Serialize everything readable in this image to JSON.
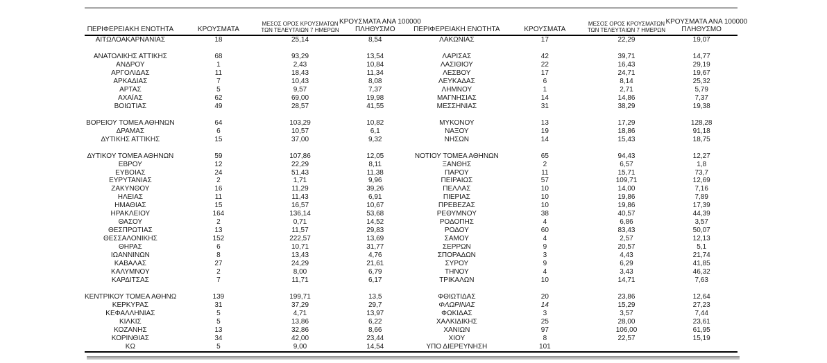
{
  "table": {
    "columns": {
      "region": "ΠΕΡΙΦΕΡΕΙΑΚΗ ΕΝΟΤΗΤΑ",
      "cases": "ΚΡΟΥΣΜΑΤΑ",
      "avg7_line1": "ΜΕΣΟΣ ΟΡΟΣ ΚΡΟΥΣΜΑΤΩΝ",
      "avg7_line2": "ΤΩΝ ΤΕΛΕΥΤΑΙΩΝ 7 ΗΜΕΡΩΝ",
      "per100k_line1": "ΚΡΟΥΣΜΑΤΑ ΑΝΑ 100000",
      "per100k_line2": "ΠΛΗΘΥΣΜΟ"
    },
    "rows": [
      {
        "l": [
          "ΑΙΤΩΛΟΑΚΑΡΝΑΝΙΑΣ",
          "18",
          "25,14",
          "8,54"
        ],
        "r": [
          "ΛΑΚΩΝΙΑΣ",
          "17",
          "22,29",
          "19,07"
        ]
      },
      {
        "spacer": true,
        "l": [
          "",
          "",
          "",
          ""
        ],
        "r": [
          "",
          "",
          "",
          ""
        ]
      },
      {
        "l": [
          "ΑΝΑΤΟΛΙΚΗΣ ΑΤΤΙΚΗΣ",
          "68",
          "93,29",
          "13,54"
        ],
        "r": [
          "ΛΑΡΙΣΑΣ",
          "42",
          "39,71",
          "14,77"
        ]
      },
      {
        "l": [
          "ΑΝΔΡΟΥ",
          "1",
          "2,43",
          "10,84"
        ],
        "r": [
          "ΛΑΣΙΘΙΟΥ",
          "22",
          "16,43",
          "29,19"
        ]
      },
      {
        "l": [
          "ΑΡΓΟΛΙΔΑΣ",
          "11",
          "18,43",
          "11,34"
        ],
        "r": [
          "ΛΕΣΒΟΥ",
          "17",
          "24,71",
          "19,67"
        ]
      },
      {
        "l": [
          "ΑΡΚΑΔΙΑΣ",
          "7",
          "10,43",
          "8,08"
        ],
        "r": [
          "ΛΕΥΚΑΔΑΣ",
          "6",
          "8,14",
          "25,32"
        ]
      },
      {
        "l": [
          "ΑΡΤΑΣ",
          "5",
          "9,57",
          "7,37"
        ],
        "r": [
          "ΛΗΜΝΟΥ",
          "1",
          "2,71",
          "5,79"
        ]
      },
      {
        "l": [
          "ΑΧΑΪΑΣ",
          "62",
          "69,00",
          "19,98"
        ],
        "r": [
          "ΜΑΓΝΗΣΙΑΣ",
          "14",
          "14,86",
          "7,37"
        ]
      },
      {
        "l": [
          "ΒΟΙΩΤΙΑΣ",
          "49",
          "28,57",
          "41,55"
        ],
        "r": [
          "ΜΕΣΣΗΝΙΑΣ",
          "31",
          "38,29",
          "19,38"
        ]
      },
      {
        "spacer": true,
        "l": [
          "",
          "",
          "",
          ""
        ],
        "r": [
          "",
          "",
          "",
          ""
        ]
      },
      {
        "l": [
          "ΒΟΡΕΙΟΥ ΤΟΜΕΑ ΑΘΗΝΩΝ",
          "64",
          "103,29",
          "10,82"
        ],
        "r": [
          "ΜΥΚΟΝΟΥ",
          "13",
          "17,29",
          "128,28"
        ]
      },
      {
        "l": [
          "ΔΡΑΜΑΣ",
          "6",
          "10,57",
          "6,1"
        ],
        "r": [
          "ΝΑΞΟΥ",
          "19",
          "18,86",
          "91,18"
        ]
      },
      {
        "l": [
          "ΔΥΤΙΚΗΣ ΑΤΤΙΚΗΣ",
          "15",
          "37,00",
          "9,32"
        ],
        "r": [
          "ΝΗΣΩΝ",
          "14",
          "15,43",
          "18,75"
        ]
      },
      {
        "spacer": true,
        "l": [
          "",
          "",
          "",
          ""
        ],
        "r": [
          "",
          "",
          "",
          ""
        ]
      },
      {
        "l": [
          "ΔΥΤΙΚΟΥ ΤΟΜΕΑ ΑΘΗΝΩΝ",
          "59",
          "107,86",
          "12,05"
        ],
        "r": [
          "ΝΟΤΙΟΥ ΤΟΜΕΑ ΑΘΗΝΩΝ",
          "65",
          "94,43",
          "12,27"
        ]
      },
      {
        "l": [
          "ΕΒΡΟΥ",
          "12",
          "22,29",
          "8,11"
        ],
        "r": [
          "ΞΑΝΘΗΣ",
          "2",
          "6,57",
          "1,8"
        ]
      },
      {
        "l": [
          "ΕΥΒΟΙΑΣ",
          "24",
          "51,43",
          "11,38"
        ],
        "r": [
          "ΠΑΡΟΥ",
          "11",
          "15,71",
          "73,7"
        ]
      },
      {
        "l": [
          "ΕΥΡΥΤΑΝΙΑΣ",
          "2",
          "1,71",
          "9,96"
        ],
        "r": [
          "ΠΕΙΡΑΙΩΣ",
          "57",
          "109,71",
          "12,69"
        ]
      },
      {
        "l": [
          "ΖΑΚΥΝΘΟΥ",
          "16",
          "11,29",
          "39,26"
        ],
        "r": [
          "ΠΕΛΛΑΣ",
          "10",
          "14,00",
          "7,16"
        ]
      },
      {
        "l": [
          "ΗΛΕΙΑΣ",
          "11",
          "11,43",
          "6,91"
        ],
        "r": [
          "ΠΙΕΡΙΑΣ",
          "10",
          "19,86",
          "7,89"
        ]
      },
      {
        "l": [
          "ΗΜΑΘΙΑΣ",
          "15",
          "16,57",
          "10,67"
        ],
        "r": [
          "ΠΡΕΒΕΖΑΣ",
          "10",
          "19,86",
          "17,39"
        ]
      },
      {
        "l": [
          "ΗΡΑΚΛΕΙΟΥ",
          "164",
          "136,14",
          "53,68"
        ],
        "r": [
          "ΡΕΘΥΜΝΟΥ",
          "38",
          "40,57",
          "44,39"
        ]
      },
      {
        "l": [
          "ΘΑΣΟΥ",
          "2",
          "0,71",
          "14,52"
        ],
        "r": [
          "ΡΟΔΟΠΗΣ",
          "4",
          "6,86",
          "3,57"
        ]
      },
      {
        "l": [
          "ΘΕΣΠΡΩΤΙΑΣ",
          "13",
          "11,57",
          "29,83"
        ],
        "r": [
          "ΡΟΔΟΥ",
          "60",
          "83,43",
          "50,07"
        ]
      },
      {
        "l": [
          "ΘΕΣΣΑΛΟΝΙΚΗΣ",
          "152",
          "222,57",
          "13,69"
        ],
        "r": [
          "ΣΑΜΟΥ",
          "4",
          "2,57",
          "12,13"
        ]
      },
      {
        "l": [
          "ΘΗΡΑΣ",
          "6",
          "10,71",
          "31,77"
        ],
        "r": [
          "ΣΕΡΡΩΝ",
          "9",
          "20,57",
          "5,1"
        ]
      },
      {
        "l": [
          "ΙΩΑΝΝΙΝΩΝ",
          "8",
          "13,43",
          "4,76"
        ],
        "r": [
          "ΣΠΟΡΑΔΩΝ",
          "3",
          "4,43",
          "21,74"
        ]
      },
      {
        "l": [
          "ΚΑΒΑΛΑΣ",
          "27",
          "24,29",
          "21,61"
        ],
        "r": [
          "ΣΥΡΟΥ",
          "9",
          "6,29",
          "41,85"
        ]
      },
      {
        "l": [
          "ΚΑΛΥΜΝΟΥ",
          "2",
          "8,00",
          "6,79"
        ],
        "r": [
          "ΤΗΝΟΥ",
          "4",
          "3,43",
          "46,32"
        ]
      },
      {
        "l": [
          "ΚΑΡΔΙΤΣΑΣ",
          "7",
          "11,71",
          "6,17"
        ],
        "r": [
          "ΤΡΙΚΑΛΩΝ",
          "10",
          "14,71",
          "7,63"
        ]
      },
      {
        "spacer": true,
        "l": [
          "",
          "",
          "",
          ""
        ],
        "r": [
          "",
          "",
          "",
          ""
        ]
      },
      {
        "l": [
          "ΚΕΝΤΡΙΚΟΥ ΤΟΜΕΑ ΑΘΗΝΩΝ",
          "139",
          "199,71",
          "13,5"
        ],
        "r": [
          "ΦΘΙΩΤΙΔΑΣ",
          "20",
          "23,86",
          "12,64"
        ]
      },
      {
        "l": [
          "ΚΕΡΚΥΡΑΣ",
          "31",
          "37,29",
          "29,7"
        ],
        "r": [
          "ΦΛΩΡΙΝΑΣ",
          "14",
          "15,29",
          "27,23"
        ],
        "r_italic": true
      },
      {
        "l": [
          "ΚΕΦΑΛΛΗΝΙΑΣ",
          "5",
          "4,71",
          "13,97"
        ],
        "r": [
          "ΦΩΚΙΔΑΣ",
          "3",
          "3,57",
          "7,44"
        ]
      },
      {
        "l": [
          "ΚΙΛΚΙΣ",
          "5",
          "13,86",
          "6,22"
        ],
        "r": [
          "ΧΑΛΚΙΔΙΚΗΣ",
          "25",
          "28,00",
          "23,61"
        ]
      },
      {
        "l": [
          "ΚΟΖΑΝΗΣ",
          "13",
          "32,86",
          "8,66"
        ],
        "r": [
          "ΧΑΝΙΩΝ",
          "97",
          "106,00",
          "61,95"
        ]
      },
      {
        "l": [
          "ΚΟΡΙΝΘΙΑΣ",
          "34",
          "42,00",
          "23,44"
        ],
        "r": [
          "ΧΙΟΥ",
          "8",
          "22,57",
          "15,19"
        ]
      },
      {
        "l": [
          "ΚΩ",
          "5",
          "9,00",
          "14,54"
        ],
        "r": [
          "ΥΠΟ ΔΙΕΡΕΥΝΗΣΗ",
          "101",
          "",
          ""
        ]
      }
    ]
  },
  "colors": {
    "rule": "#000000",
    "gray_bar_face": "#c3c3c3",
    "gray_bar_edge": "#949494"
  }
}
